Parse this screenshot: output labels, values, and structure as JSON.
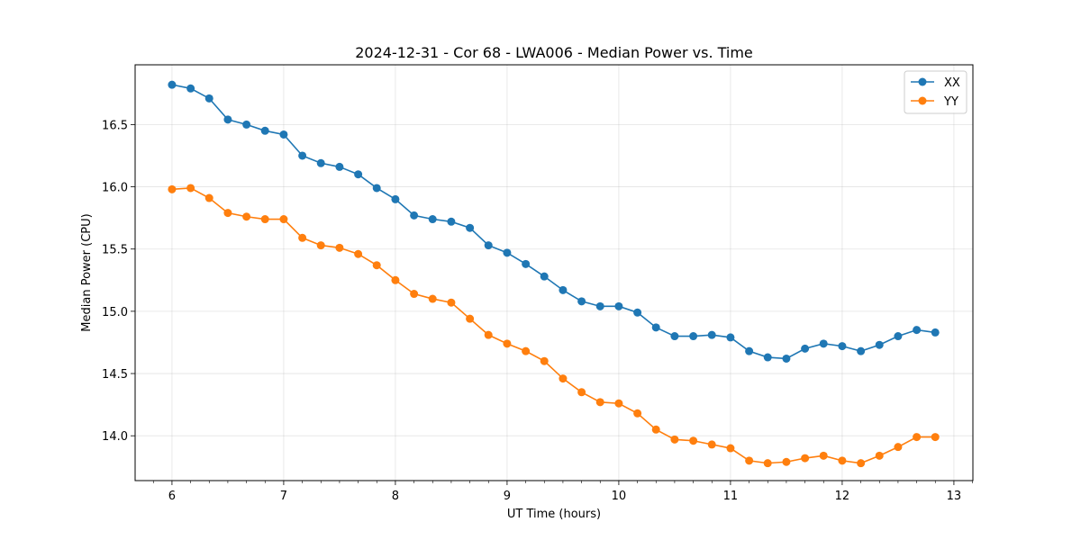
{
  "chart_data": {
    "type": "line",
    "title": "2024-12-31 - Cor 68 - LWA006 - Median Power vs. Time",
    "xlabel": "UT Time (hours)",
    "ylabel": "Median Power (CPU)",
    "xlim": [
      5.67,
      13.17
    ],
    "ylim": [
      13.64,
      16.98
    ],
    "xticks": [
      6,
      7,
      8,
      9,
      10,
      11,
      12,
      13
    ],
    "xtick_labels": [
      "6",
      "7",
      "8",
      "9",
      "10",
      "11",
      "12",
      "13"
    ],
    "yticks": [
      14.0,
      14.5,
      15.0,
      15.5,
      16.0,
      16.5
    ],
    "ytick_labels": [
      "14.0",
      "14.5",
      "15.0",
      "15.5",
      "16.0",
      "16.5"
    ],
    "grid": true,
    "legend_position": "top-right",
    "x": [
      6.0,
      6.167,
      6.333,
      6.5,
      6.667,
      6.833,
      7.0,
      7.167,
      7.333,
      7.5,
      7.667,
      7.833,
      8.0,
      8.167,
      8.333,
      8.5,
      8.667,
      8.833,
      9.0,
      9.167,
      9.333,
      9.5,
      9.667,
      9.833,
      10.0,
      10.167,
      10.333,
      10.5,
      10.667,
      10.833,
      11.0,
      11.167,
      11.333,
      11.5,
      11.667,
      11.833,
      12.0,
      12.167,
      12.333,
      12.5,
      12.667,
      12.833
    ],
    "series": [
      {
        "name": "XX",
        "color": "#1f77b4",
        "values": [
          16.82,
          16.79,
          16.71,
          16.54,
          16.5,
          16.45,
          16.42,
          16.25,
          16.19,
          16.16,
          16.1,
          15.99,
          15.9,
          15.77,
          15.74,
          15.72,
          15.67,
          15.53,
          15.47,
          15.38,
          15.28,
          15.17,
          15.08,
          15.04,
          15.04,
          14.99,
          14.87,
          14.8,
          14.8,
          14.81,
          14.79,
          14.68,
          14.63,
          14.62,
          14.7,
          14.74,
          14.72,
          14.68,
          14.73,
          14.8,
          14.85,
          14.83
        ]
      },
      {
        "name": "YY",
        "color": "#ff7f0e",
        "values": [
          15.98,
          15.99,
          15.91,
          15.79,
          15.76,
          15.74,
          15.74,
          15.59,
          15.53,
          15.51,
          15.46,
          15.37,
          15.25,
          15.14,
          15.1,
          15.07,
          14.94,
          14.81,
          14.74,
          14.68,
          14.6,
          14.46,
          14.35,
          14.27,
          14.26,
          14.18,
          14.05,
          13.97,
          13.96,
          13.93,
          13.9,
          13.8,
          13.78,
          13.79,
          13.82,
          13.84,
          13.8,
          13.78,
          13.84,
          13.91,
          13.99,
          13.99
        ]
      }
    ]
  }
}
